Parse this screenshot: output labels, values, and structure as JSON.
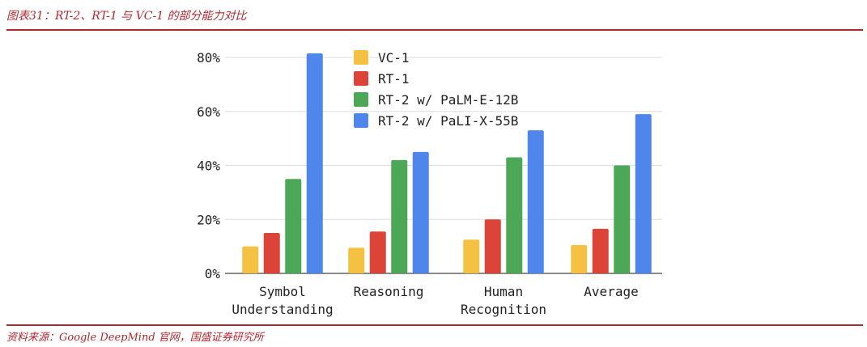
{
  "figure": {
    "caption": "图表31：RT-2、RT-1 与 VC-1 的部分能力对比",
    "source": "资料来源：Google DeepMind 官网，国盛证券研究所"
  },
  "chart_data": {
    "type": "bar",
    "title": "",
    "xlabel": "",
    "ylabel": "",
    "ylim": [
      0,
      80
    ],
    "y_unit": "%",
    "yticks": [
      "0%",
      "20%",
      "40%",
      "60%",
      "80%"
    ],
    "grid": true,
    "legend_position": "top-center",
    "categories": [
      [
        "Symbol",
        "Understanding"
      ],
      [
        "Reasoning"
      ],
      [
        "Human",
        "Recognition"
      ],
      [
        "Average"
      ]
    ],
    "series": [
      {
        "name": "VC-1",
        "color": "#f4c142",
        "values": [
          10,
          9.5,
          12.5,
          10.5
        ]
      },
      {
        "name": "RT-1",
        "color": "#db4437",
        "values": [
          15,
          15.5,
          20,
          16.5
        ]
      },
      {
        "name": "RT-2 w/ PaLM-E-12B",
        "color": "#4ca856",
        "values": [
          35,
          42,
          43,
          40
        ]
      },
      {
        "name": "RT-2 w/ PaLI-X-55B",
        "color": "#4f86ec",
        "values": [
          81.5,
          45,
          53,
          59
        ]
      }
    ]
  }
}
